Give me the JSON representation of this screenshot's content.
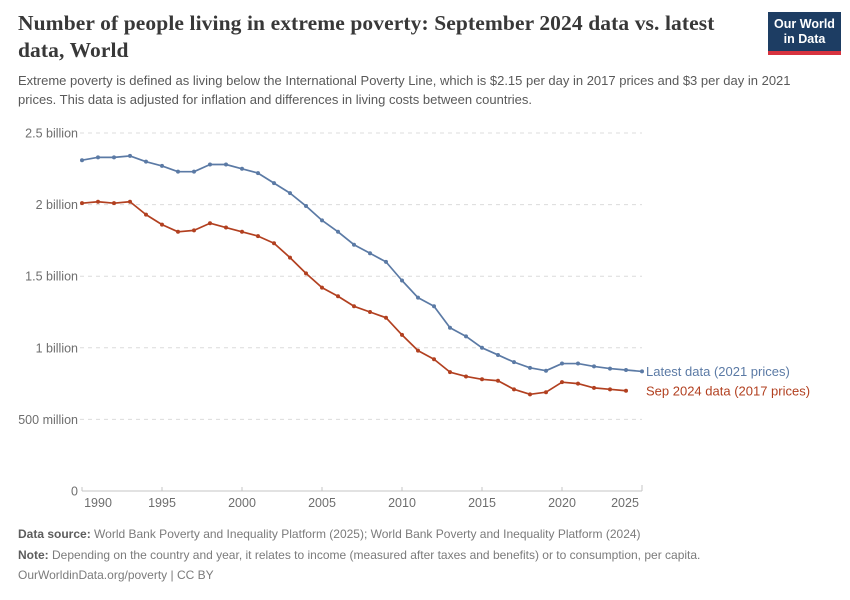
{
  "header": {
    "title": "Number of people living in extreme poverty: September 2024 data vs. latest data, World",
    "subtitle": "Extreme poverty is defined as living below the International Poverty Line, which is $2.15 per day in 2017 prices and $3 per day in 2021 prices. This data is adjusted for inflation and differences in living costs between countries.",
    "logo_line1": "Our World",
    "logo_line2": "in Data",
    "logo_bg_color": "#1d3d63",
    "logo_accent_color": "#d7333f"
  },
  "chart_data": {
    "type": "line",
    "title": "Number of people living in extreme poverty: September 2024 data vs. latest data, World",
    "xlabel": "",
    "ylabel": "",
    "x_range": [
      1990,
      2025
    ],
    "y_range": [
      0,
      2.5
    ],
    "y_unit": "billion people",
    "grid": true,
    "legend_position": "right-of-line-end",
    "x": [
      1990,
      1991,
      1992,
      1993,
      1994,
      1995,
      1996,
      1997,
      1998,
      1999,
      2000,
      2001,
      2002,
      2003,
      2004,
      2005,
      2006,
      2007,
      2008,
      2009,
      2010,
      2011,
      2012,
      2013,
      2014,
      2015,
      2016,
      2017,
      2018,
      2019,
      2020,
      2021,
      2022,
      2023,
      2024,
      2025
    ],
    "x_ticks": [
      1990,
      1995,
      2000,
      2005,
      2010,
      2015,
      2020,
      2025
    ],
    "y_ticks": [
      {
        "value": 0,
        "label": "0"
      },
      {
        "value": 0.5,
        "label": "500 million"
      },
      {
        "value": 1,
        "label": "1 billion"
      },
      {
        "value": 1.5,
        "label": "1.5 billion"
      },
      {
        "value": 2,
        "label": "2 billion"
      },
      {
        "value": 2.5,
        "label": "2.5 billion"
      }
    ],
    "series": [
      {
        "name": "Latest data (2021 prices)",
        "color": "#5b7aa5",
        "unit": "billion people",
        "values": [
          2.31,
          2.33,
          2.33,
          2.34,
          2.3,
          2.27,
          2.23,
          2.23,
          2.28,
          2.28,
          2.25,
          2.22,
          2.15,
          2.08,
          1.99,
          1.89,
          1.81,
          1.72,
          1.66,
          1.6,
          1.47,
          1.35,
          1.29,
          1.14,
          1.08,
          1.0,
          0.95,
          0.9,
          0.86,
          0.84,
          0.89,
          0.89,
          0.87,
          0.855,
          0.845,
          0.835
        ]
      },
      {
        "name": "Sep 2024 data (2017 prices)",
        "color": "#b24020",
        "unit": "billion people",
        "values": [
          2.01,
          2.02,
          2.01,
          2.02,
          1.93,
          1.86,
          1.81,
          1.82,
          1.87,
          1.84,
          1.81,
          1.78,
          1.73,
          1.63,
          1.52,
          1.42,
          1.36,
          1.29,
          1.25,
          1.21,
          1.09,
          0.98,
          0.92,
          0.83,
          0.8,
          0.78,
          0.77,
          0.71,
          0.675,
          0.69,
          0.76,
          0.75,
          0.72,
          0.71,
          0.7
        ]
      }
    ]
  },
  "footer": {
    "source_label": "Data source:",
    "source_text": "World Bank Poverty and Inequality Platform (2025); World Bank Poverty and Inequality Platform (2024)",
    "note_label": "Note:",
    "note_text": "Depending on the country and year, it relates to income (measured after taxes and benefits) or to consumption, per capita.",
    "citation": "OurWorldinData.org/poverty | CC BY"
  }
}
